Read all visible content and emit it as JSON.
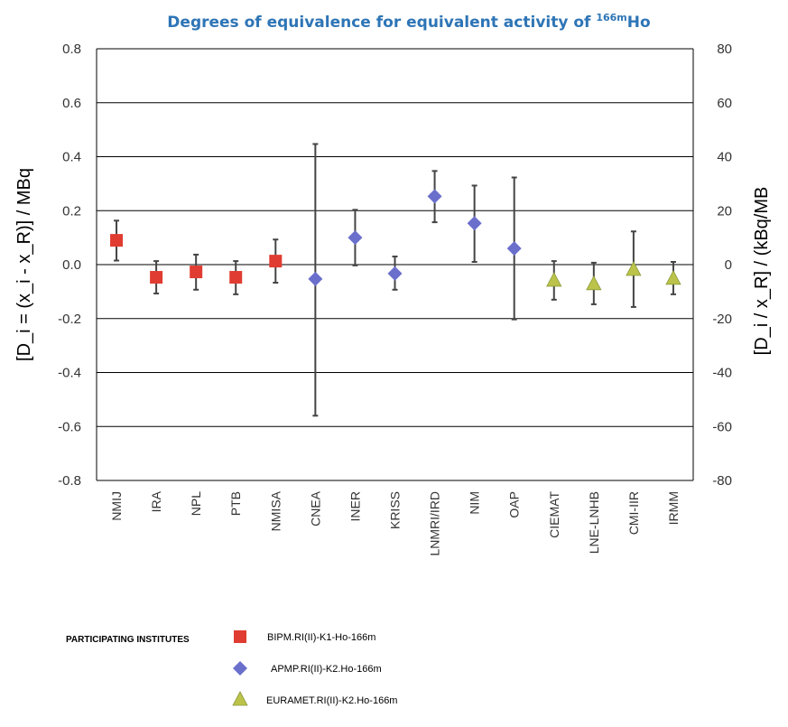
{
  "chart_data": {
    "type": "scatter",
    "title_main": "Degrees of equivalence for equivalent activity of ",
    "title_sup": "166m",
    "title_end": "Ho",
    "ylabel_left": "[D_i = (x_i - x_R)] / MBq",
    "ylabel_right": "[D_i / x_R] / (kBq/MB",
    "ylim_left": [
      -0.8,
      0.8
    ],
    "ylim_right": [
      -80,
      80
    ],
    "yticks_left": [
      "0.8",
      "0.6",
      "0.4",
      "0.2",
      "0.0",
      "-0.2",
      "-0.4",
      "-0.6",
      "-0.8"
    ],
    "yticks_right": [
      "80",
      "60",
      "40",
      "20",
      "0",
      "-20",
      "-40",
      "-60",
      "-80"
    ],
    "grid": "horizontal",
    "categories": [
      "NMIJ",
      "IRA",
      "NPL",
      "PTB",
      "NMISA",
      "CNEA",
      "INER",
      "KRISS",
      "LNMRI/IRD",
      "NIM",
      "OAP",
      "CIEMAT",
      "LNE-LNHB",
      "CMI-IIR",
      "IRMM"
    ],
    "series": [
      {
        "name": "BIPM.RI(II)-K1-Ho-166m",
        "marker": "square",
        "color": "#e03c31",
        "points": [
          {
            "category": "NMIJ",
            "y": 0.09,
            "low": 0.015,
            "high": 0.163
          },
          {
            "category": "IRA",
            "y": -0.047,
            "low": -0.107,
            "high": 0.013
          },
          {
            "category": "NPL",
            "y": -0.027,
            "low": -0.093,
            "high": 0.037
          },
          {
            "category": "PTB",
            "y": -0.047,
            "low": -0.11,
            "high": 0.013
          },
          {
            "category": "NMISA",
            "y": 0.013,
            "low": -0.067,
            "high": 0.093
          }
        ]
      },
      {
        "name": "APMP.RI(II)-K2.Ho-166m",
        "marker": "diamond",
        "color": "#6a6fcc",
        "points": [
          {
            "category": "CNEA",
            "y": -0.053,
            "low": -0.56,
            "high": 0.447
          },
          {
            "category": "INER",
            "y": 0.1,
            "low": -0.003,
            "high": 0.203
          },
          {
            "category": "KRISS",
            "y": -0.033,
            "low": -0.093,
            "high": 0.03
          },
          {
            "category": "LNMRI/IRD",
            "y": 0.253,
            "low": 0.157,
            "high": 0.347
          },
          {
            "category": "NIM",
            "y": 0.153,
            "low": 0.01,
            "high": 0.293
          },
          {
            "category": "OAP",
            "y": 0.06,
            "low": -0.203,
            "high": 0.323
          }
        ]
      },
      {
        "name": "EURAMET.RI(II)-K2.Ho-166m",
        "marker": "triangle",
        "color": "#bcc34a",
        "points": [
          {
            "category": "CIEMAT",
            "y": -0.06,
            "low": -0.13,
            "high": 0.013
          },
          {
            "category": "LNE-LNHB",
            "y": -0.073,
            "low": -0.147,
            "high": 0.007
          },
          {
            "category": "CMI-IIR",
            "y": -0.02,
            "low": -0.157,
            "high": 0.123
          },
          {
            "category": "IRMM",
            "y": -0.053,
            "low": -0.11,
            "high": 0.01
          }
        ]
      }
    ],
    "legend": {
      "title": "PARTICIPATING INSTITUTES",
      "placement": "bottom-left"
    }
  }
}
